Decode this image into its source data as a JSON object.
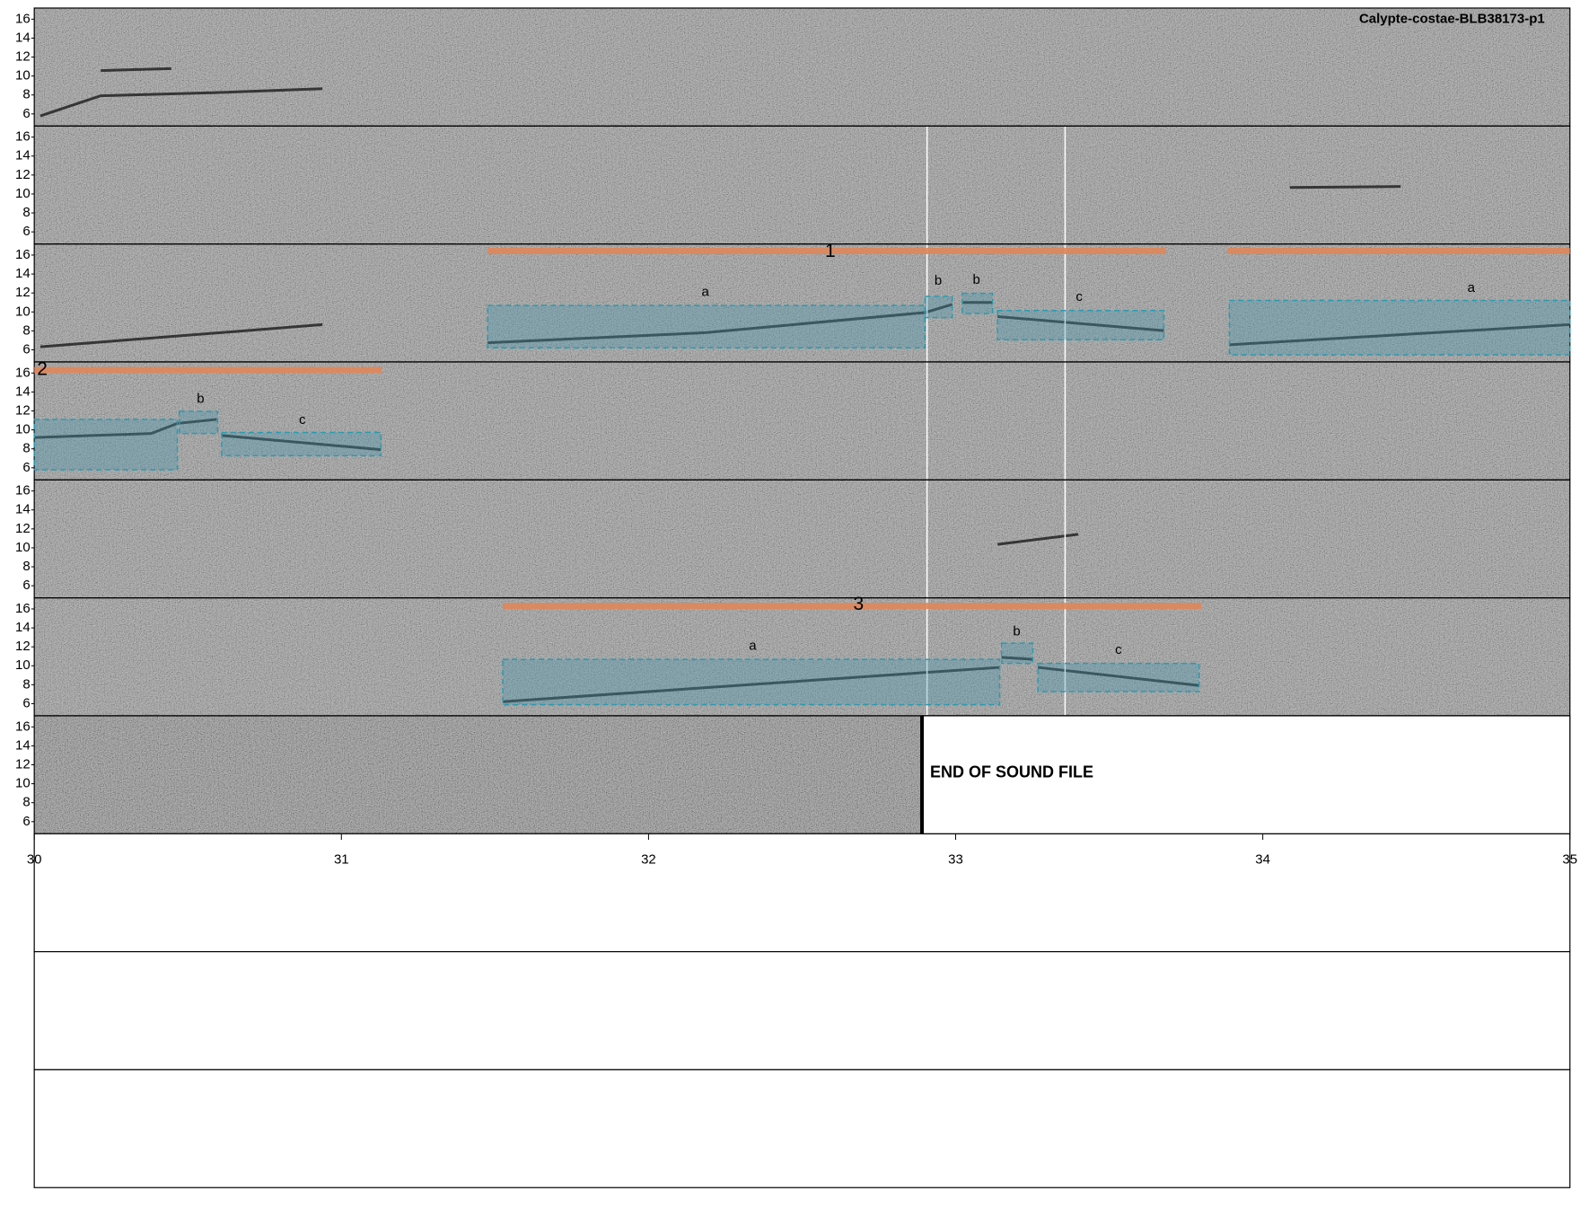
{
  "title": "Calypte-costae-BLB38173-p1",
  "y_axis": {
    "ticks": [
      6,
      8,
      10,
      12,
      14,
      16
    ]
  },
  "x_axis": {
    "ticks": [
      30,
      31,
      32,
      33,
      34,
      35
    ]
  },
  "phrases": [
    {
      "label": "1"
    },
    {
      "label": "2"
    },
    {
      "label": "3"
    }
  ],
  "syllables": [
    {
      "label": "a"
    },
    {
      "label": "b"
    },
    {
      "label": "b"
    },
    {
      "label": "c"
    },
    {
      "label": "a"
    },
    {
      "label": "b"
    },
    {
      "label": "c"
    },
    {
      "label": "a"
    },
    {
      "label": "b"
    },
    {
      "label": "c"
    }
  ],
  "end_note": "END OF SOUND FILE"
}
